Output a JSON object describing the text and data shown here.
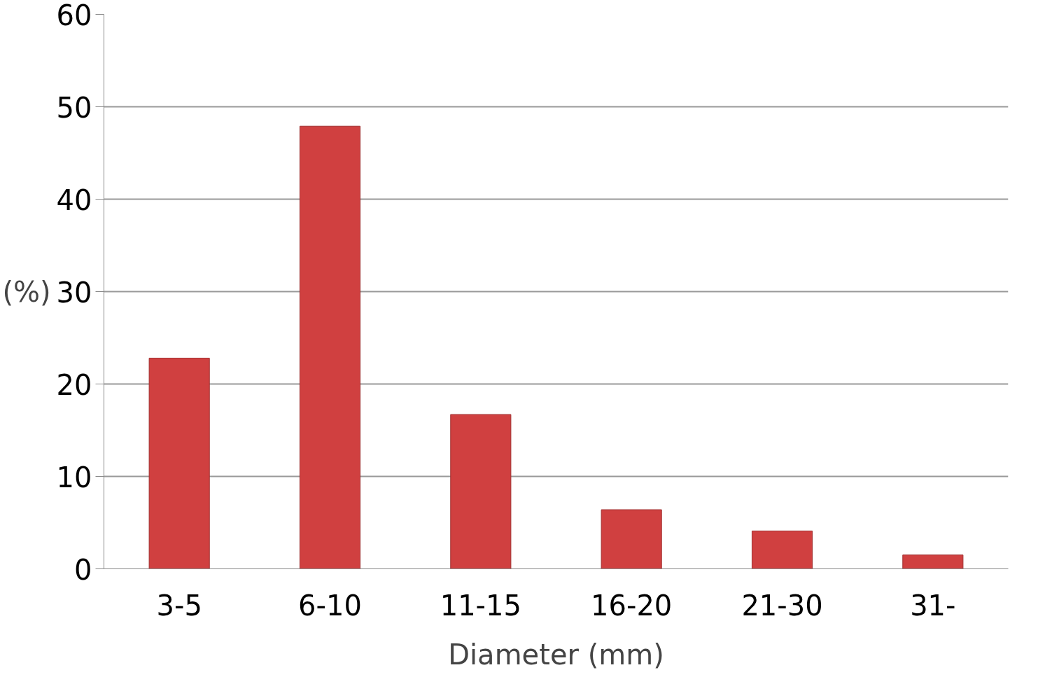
{
  "chart_data": {
    "type": "bar",
    "xlabel": "Diameter (mm)",
    "ylabel": "(%)",
    "categories": [
      "3-5",
      "6-10",
      "11-15",
      "16-20",
      "21-30",
      "31-"
    ],
    "values": [
      22.8,
      47.9,
      16.7,
      6.4,
      4.1,
      1.5
    ],
    "color": "#d04040",
    "ylim": [
      0,
      60
    ],
    "yticks": [
      0,
      10,
      20,
      30,
      40,
      50,
      60
    ],
    "grid": "y"
  }
}
